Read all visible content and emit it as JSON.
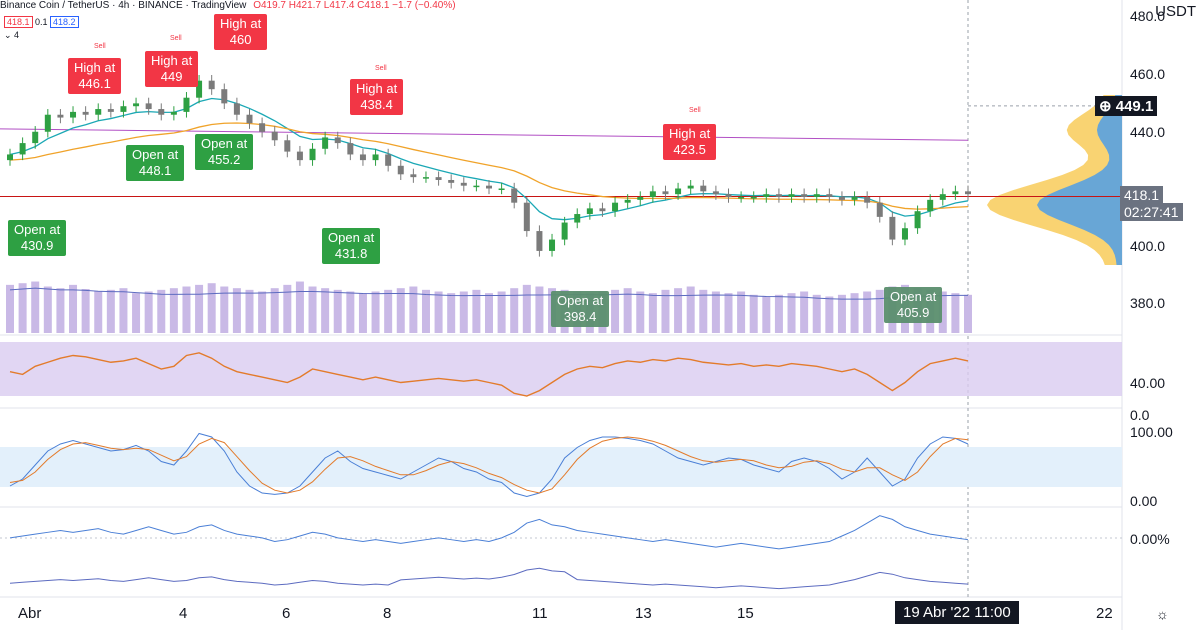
{
  "header": {
    "symbol": "Binance Coin / TetherUS · 4h · BINANCE · TradingView",
    "ohlc": "O419.7 H421.7 L417.4 C418.1 −1.7 (−0.40%)",
    "bid": "418.1",
    "spread": "0.1",
    "ask": "418.2",
    "indicators_count": "4"
  },
  "currency": "USDT",
  "price_axis": [
    "460.0",
    "440.0",
    "400.0",
    "380.0"
  ],
  "price_top_cut": "480.0",
  "rsi_axis": [
    "40.00",
    "0.0"
  ],
  "stoch_axis": [
    "100.00",
    "0.00"
  ],
  "osc_axis": [
    "0.00%"
  ],
  "last_price_tag": "418.1",
  "countdown_tag": "02:27:41",
  "crosshair_tag": "449.1",
  "date_axis": [
    "Abr",
    "4",
    "6",
    "8",
    "11",
    "13",
    "15",
    "22"
  ],
  "date_cursor_tag": "19 Abr '22   11:00",
  "sell_label": "Sell",
  "signals": [
    {
      "text1": "High at",
      "text2": "446.1",
      "kind": "red"
    },
    {
      "text1": "High at",
      "text2": "449",
      "kind": "red"
    },
    {
      "text1": "High at",
      "text2": "460",
      "kind": "red"
    },
    {
      "text1": "High at",
      "text2": "438.4",
      "kind": "red"
    },
    {
      "text1": "High at",
      "text2": "423.5",
      "kind": "red"
    },
    {
      "text1": "Open at",
      "text2": "430.9",
      "kind": "green"
    },
    {
      "text1": "Open at",
      "text2": "448.1",
      "kind": "green"
    },
    {
      "text1": "Open at",
      "text2": "455.2",
      "kind": "green"
    },
    {
      "text1": "Open at",
      "text2": "431.8",
      "kind": "green"
    },
    {
      "text1": "Open at",
      "text2": "398.4",
      "kind": "grey"
    },
    {
      "text1": "Open at",
      "text2": "405.9",
      "kind": "grey"
    }
  ],
  "colors": {
    "up": "#2ea043",
    "down": "#7b7b7b",
    "ema_fast": "#1ba8b5",
    "ema_slow": "#f0a32a",
    "vwap": "#b14fc4",
    "volume": "#c9b9e6",
    "vol_ma": "#5c6bc0",
    "rsi": "#e37b2b",
    "stoch_k": "#4a7fd6",
    "stoch_d": "#e37b2b",
    "last": "#c81414"
  },
  "chart_data": {
    "type": "candlestick",
    "timeframe": "4h",
    "ylim": [
      370,
      480
    ],
    "close": [
      432,
      436,
      440,
      446,
      445,
      447,
      446,
      448,
      447,
      449,
      450,
      448,
      446,
      447,
      452,
      458,
      455,
      450,
      446,
      443,
      440,
      437,
      433,
      430,
      434,
      438,
      436,
      432,
      430,
      432,
      428,
      425,
      424,
      424,
      423,
      422,
      421,
      421,
      420,
      420,
      415,
      405,
      398,
      402,
      408,
      411,
      413,
      412,
      415,
      416,
      417,
      419,
      418,
      420,
      421,
      419,
      418,
      417,
      417,
      417,
      418,
      417,
      418,
      417,
      418,
      417,
      416,
      417,
      415,
      410,
      402,
      406,
      412,
      416,
      418,
      419,
      418
    ],
    "volume_scale": [
      0,
      100
    ],
    "volume": [
      30,
      32,
      34,
      28,
      26,
      30,
      25,
      22,
      24,
      26,
      20,
      22,
      24,
      26,
      28,
      30,
      32,
      28,
      26,
      24,
      22,
      26,
      30,
      34,
      28,
      26,
      24,
      22,
      20,
      22,
      24,
      26,
      28,
      24,
      22,
      20,
      22,
      24,
      20,
      22,
      26,
      30,
      28,
      26,
      24,
      22,
      20,
      22,
      24,
      26,
      22,
      20,
      24,
      26,
      28,
      24,
      22,
      20,
      22,
      18,
      16,
      18,
      20,
      22,
      18,
      16,
      18,
      20,
      22,
      24,
      28,
      30,
      26,
      24,
      22,
      20,
      18
    ],
    "rsi_ylim": [
      0,
      100
    ],
    "rsi": [
      48,
      46,
      52,
      55,
      58,
      60,
      59,
      57,
      55,
      56,
      58,
      54,
      50,
      52,
      60,
      62,
      58,
      52,
      48,
      46,
      44,
      42,
      40,
      44,
      50,
      48,
      46,
      44,
      42,
      44,
      42,
      40,
      41,
      42,
      43,
      42,
      41,
      42,
      40,
      38,
      32,
      30,
      34,
      40,
      46,
      50,
      52,
      51,
      54,
      56,
      55,
      57,
      56,
      58,
      57,
      55,
      54,
      53,
      54,
      52,
      53,
      52,
      54,
      53,
      52,
      50,
      48,
      50,
      46,
      40,
      34,
      40,
      48,
      54,
      56,
      58,
      56
    ],
    "stoch_ylim": [
      0,
      100
    ],
    "stoch_k": [
      20,
      30,
      50,
      70,
      80,
      85,
      80,
      75,
      70,
      72,
      78,
      70,
      55,
      50,
      70,
      95,
      90,
      70,
      40,
      20,
      10,
      8,
      10,
      20,
      40,
      60,
      70,
      55,
      45,
      40,
      35,
      30,
      40,
      50,
      60,
      55,
      45,
      40,
      30,
      25,
      10,
      5,
      10,
      30,
      60,
      75,
      85,
      90,
      90,
      88,
      85,
      80,
      70,
      60,
      55,
      50,
      55,
      60,
      58,
      50,
      45,
      40,
      55,
      60,
      55,
      45,
      30,
      40,
      60,
      40,
      20,
      30,
      60,
      80,
      90,
      88,
      80
    ],
    "stoch_d": [
      25,
      28,
      40,
      58,
      72,
      80,
      82,
      78,
      74,
      72,
      74,
      72,
      64,
      56,
      62,
      80,
      88,
      82,
      62,
      42,
      24,
      14,
      10,
      14,
      26,
      44,
      60,
      62,
      56,
      48,
      42,
      36,
      36,
      42,
      50,
      55,
      52,
      46,
      38,
      32,
      22,
      14,
      10,
      16,
      36,
      58,
      74,
      84,
      88,
      90,
      88,
      84,
      78,
      70,
      62,
      56,
      54,
      56,
      58,
      56,
      50,
      46,
      48,
      54,
      56,
      52,
      44,
      40,
      46,
      46,
      36,
      28,
      40,
      62,
      80,
      88,
      86
    ],
    "osc": [
      2,
      3,
      4,
      5,
      6,
      5,
      6,
      7,
      5,
      4,
      6,
      8,
      6,
      4,
      5,
      8,
      9,
      6,
      4,
      3,
      2,
      0,
      1,
      3,
      5,
      4,
      2,
      1,
      0,
      1,
      0,
      -1,
      0,
      1,
      2,
      1,
      0,
      1,
      0,
      2,
      5,
      10,
      12,
      9,
      8,
      6,
      5,
      4,
      3,
      2,
      1,
      0,
      1,
      0,
      -1,
      -2,
      -3,
      -2,
      -1,
      -2,
      -3,
      -4,
      -3,
      -2,
      -1,
      0,
      3,
      6,
      10,
      14,
      12,
      8,
      6,
      4,
      3,
      2,
      1
    ],
    "osc_ylim": [
      -10,
      16
    ]
  }
}
